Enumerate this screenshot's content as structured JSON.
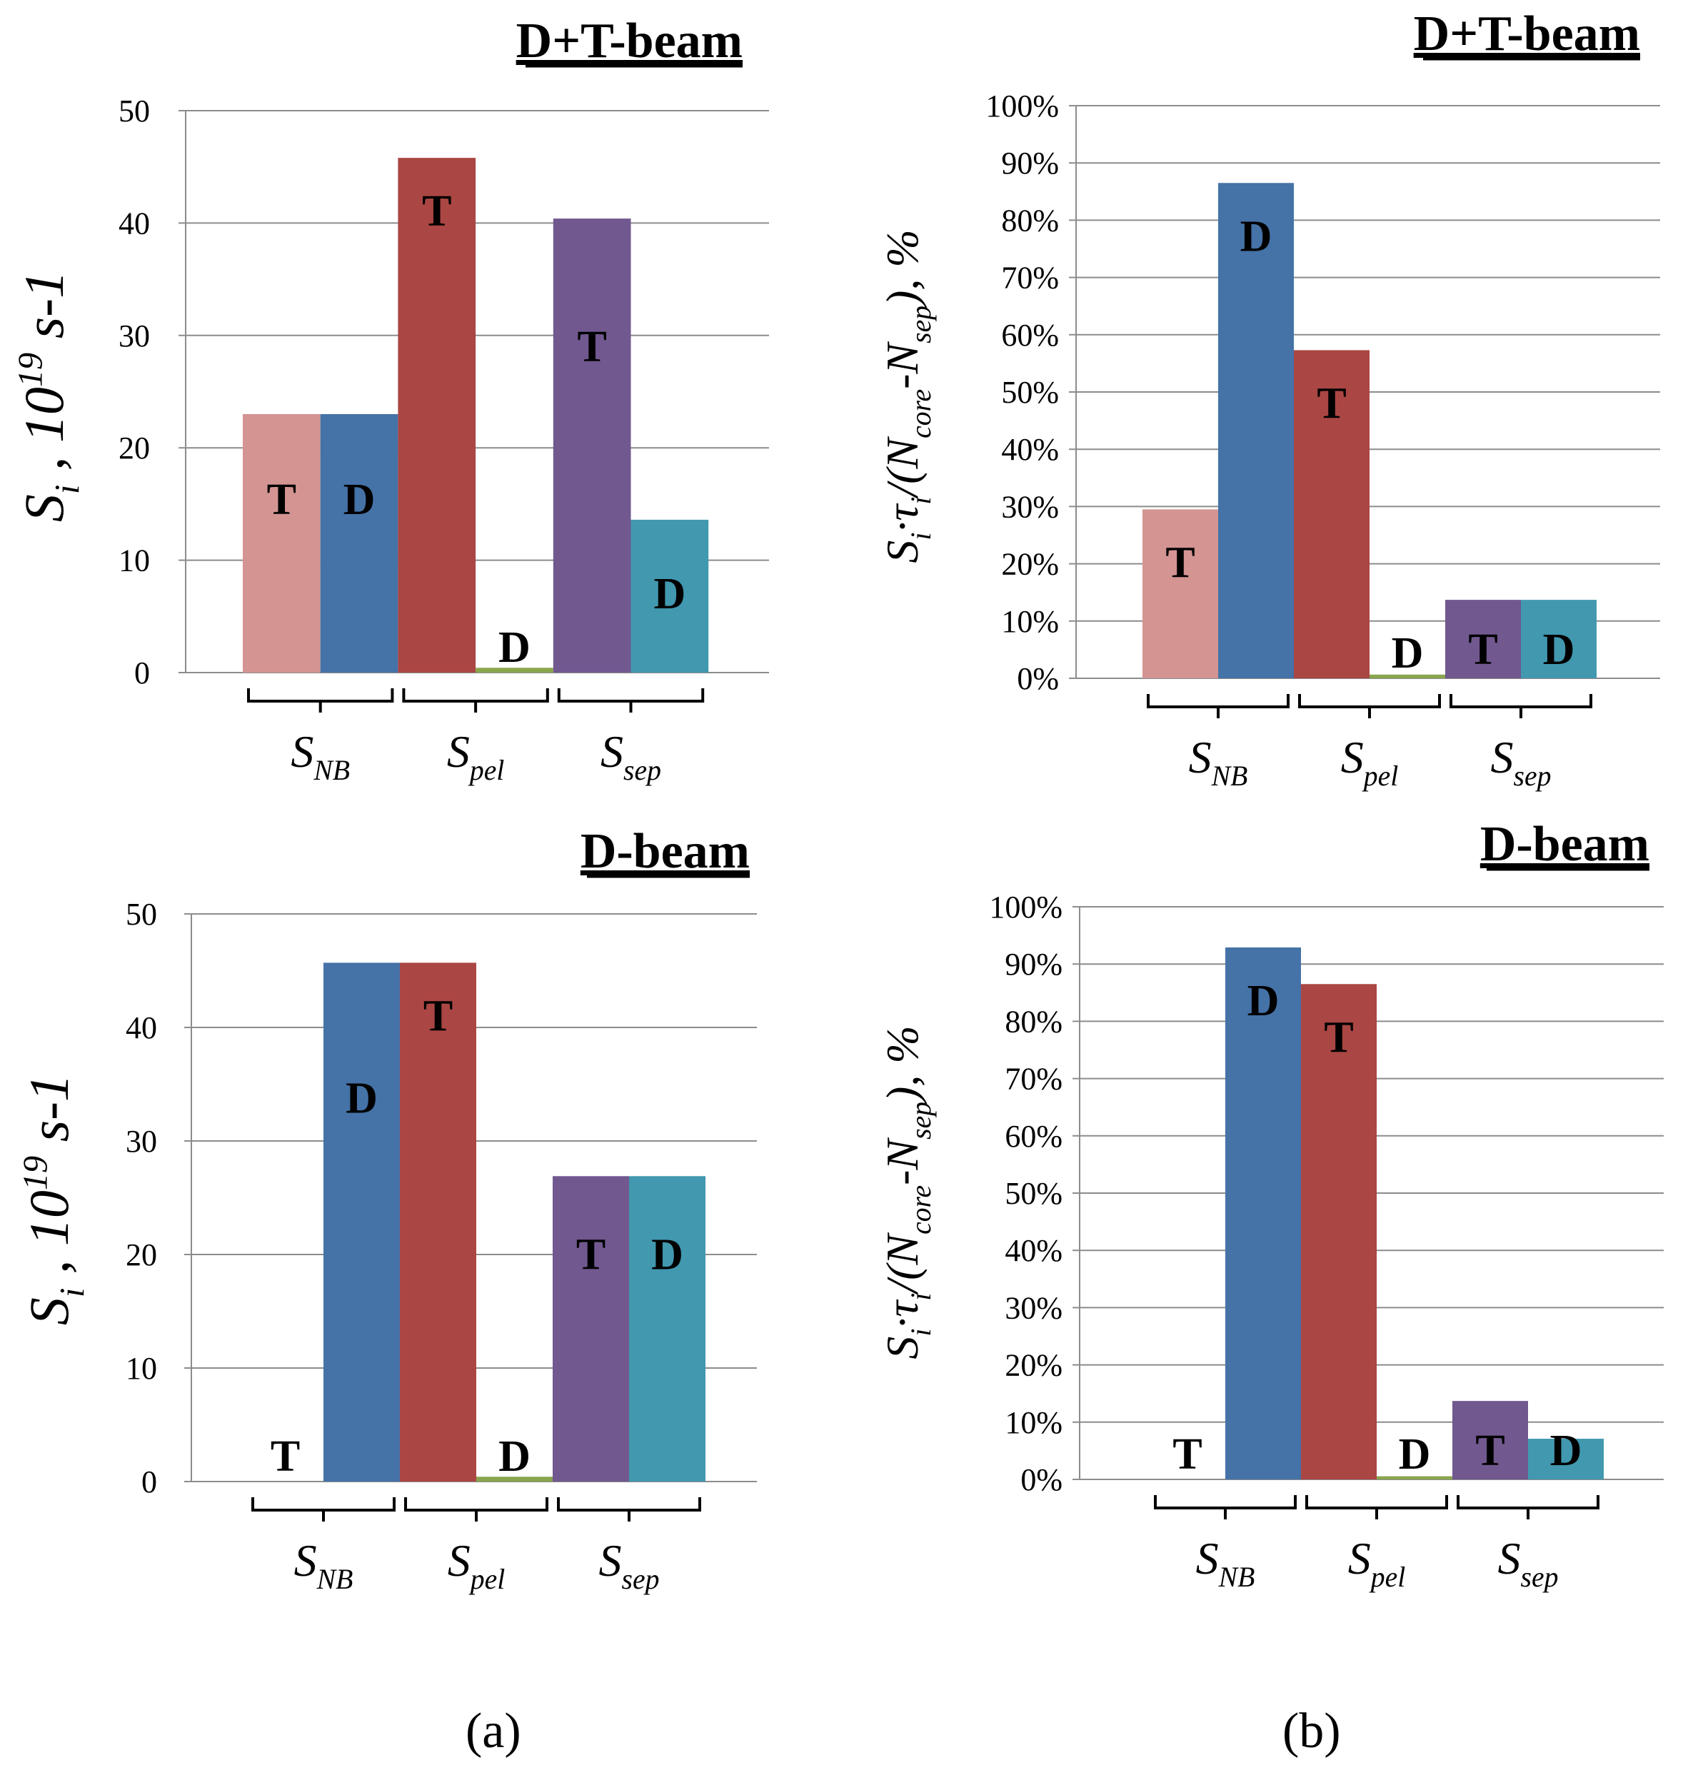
{
  "figure": {
    "panel_labels": [
      "(a)",
      "(b)"
    ],
    "colors": {
      "T_NB": "#d39492",
      "D_NB": "#4572a7",
      "T_pel": "#aa4643",
      "D_pel": "#89a54e",
      "T_sep": "#71588f",
      "D_sep": "#4198af",
      "grid": "#8c8c8c",
      "axis": "#8c8c8c",
      "text": "#000000"
    }
  },
  "chart_data": [
    {
      "type": "bar",
      "panel": "(a)",
      "title": "D+T-beam",
      "ylabel": "S_i , 10^19 s^-1",
      "ylim": [
        0,
        50
      ],
      "yticks": [
        "0",
        "10",
        "20",
        "30",
        "40",
        "50"
      ],
      "groups": [
        "S_NB",
        "S_pel",
        "S_sep"
      ],
      "bars": [
        {
          "group": "S_NB",
          "label": "T",
          "value": 23,
          "color_key": "T_NB"
        },
        {
          "group": "S_NB",
          "label": "D",
          "value": 23,
          "color_key": "D_NB"
        },
        {
          "group": "S_pel",
          "label": "T",
          "value": 45.8,
          "color_key": "T_pel"
        },
        {
          "group": "S_pel",
          "label": "D",
          "value": 0.3,
          "color_key": "D_pel"
        },
        {
          "group": "S_sep",
          "label": "T",
          "value": 40.4,
          "color_key": "T_sep"
        },
        {
          "group": "S_sep",
          "label": "D",
          "value": 13.6,
          "color_key": "D_sep"
        }
      ]
    },
    {
      "type": "bar",
      "panel": "(b)",
      "title": "D+T-beam",
      "ylabel": "S_i·τ_i/(N_core-N_sep), %",
      "ylim": [
        0,
        100
      ],
      "yticks": [
        "0%",
        "10%",
        "20%",
        "30%",
        "40%",
        "50%",
        "60%",
        "70%",
        "80%",
        "90%",
        "100%"
      ],
      "groups": [
        "S_NB",
        "S_pel",
        "S_sep"
      ],
      "bars": [
        {
          "group": "S_NB",
          "label": "T",
          "value": 29.5,
          "color_key": "T_NB"
        },
        {
          "group": "S_NB",
          "label": "D",
          "value": 86.5,
          "color_key": "D_NB"
        },
        {
          "group": "S_pel",
          "label": "T",
          "value": 57.3,
          "color_key": "T_pel"
        },
        {
          "group": "S_pel",
          "label": "D",
          "value": 0.4,
          "color_key": "D_pel"
        },
        {
          "group": "S_sep",
          "label": "T",
          "value": 13.7,
          "color_key": "T_sep"
        },
        {
          "group": "S_sep",
          "label": "D",
          "value": 13.7,
          "color_key": "D_sep"
        }
      ]
    },
    {
      "type": "bar",
      "panel": "(a)",
      "title": "D-beam",
      "ylabel": "S_i , 10^19 s^-1",
      "ylim": [
        0,
        50
      ],
      "yticks": [
        "0",
        "10",
        "20",
        "30",
        "40",
        "50"
      ],
      "groups": [
        "S_NB",
        "S_pel",
        "S_sep"
      ],
      "bars": [
        {
          "group": "S_NB",
          "label": "T",
          "value": 0,
          "color_key": "T_NB"
        },
        {
          "group": "S_NB",
          "label": "D",
          "value": 45.7,
          "color_key": "D_NB"
        },
        {
          "group": "S_pel",
          "label": "T",
          "value": 45.7,
          "color_key": "T_pel"
        },
        {
          "group": "S_pel",
          "label": "D",
          "value": 0.3,
          "color_key": "D_pel"
        },
        {
          "group": "S_sep",
          "label": "T",
          "value": 26.9,
          "color_key": "T_sep"
        },
        {
          "group": "S_sep",
          "label": "D",
          "value": 26.9,
          "color_key": "D_sep"
        }
      ]
    },
    {
      "type": "bar",
      "panel": "(b)",
      "title": "D-beam",
      "ylabel": "S_i·τ_i/(N_core-N_sep), %",
      "ylim": [
        0,
        100
      ],
      "yticks": [
        "0%",
        "10%",
        "20%",
        "30%",
        "40%",
        "50%",
        "60%",
        "70%",
        "80%",
        "90%",
        "100%"
      ],
      "groups": [
        "S_NB",
        "S_pel",
        "S_sep"
      ],
      "bars": [
        {
          "group": "S_NB",
          "label": "T",
          "value": 0,
          "color_key": "T_NB"
        },
        {
          "group": "S_NB",
          "label": "D",
          "value": 92.9,
          "color_key": "D_NB"
        },
        {
          "group": "S_pel",
          "label": "T",
          "value": 86.5,
          "color_key": "T_pel"
        },
        {
          "group": "S_pel",
          "label": "D",
          "value": 0.3,
          "color_key": "D_pel"
        },
        {
          "group": "S_sep",
          "label": "T",
          "value": 13.7,
          "color_key": "T_sep"
        },
        {
          "group": "S_sep",
          "label": "D",
          "value": 7.1,
          "color_key": "D_sep"
        }
      ]
    }
  ]
}
